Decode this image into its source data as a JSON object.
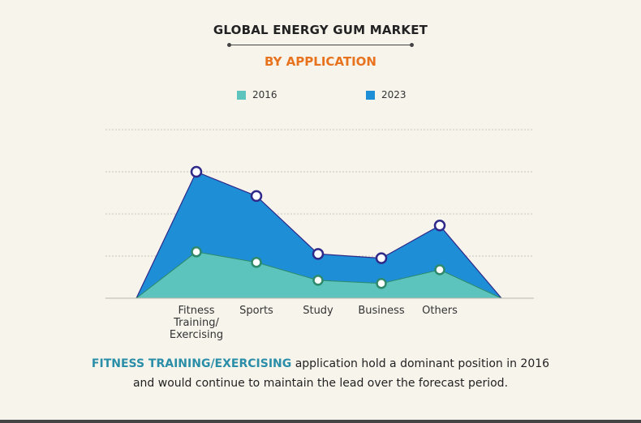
{
  "header": {
    "title": "GLOBAL ENERGY GUM MARKET",
    "subtitle": "BY APPLICATION"
  },
  "footer": {
    "highlight": "FITNESS TRAINING/EXERCISING",
    "line1_rest": " application hold a dominant position in 2016",
    "line2": "and would continue to maintain the lead over the forecast period."
  },
  "colors": {
    "series_2016": "#5cc3bd",
    "series_2023": "#1e8fd6",
    "marker_2016": "#2e8a6a",
    "marker_2023": "#2f2a8a",
    "grid": "#c9c6bd",
    "accent": "#e8731e"
  },
  "chart_data": {
    "type": "area",
    "categories": [
      "Fitness\nTraining/\nExercising",
      "Sports",
      "Study",
      "Business",
      "Others"
    ],
    "series": [
      {
        "name": "2016",
        "values": [
          2.2,
          1.7,
          0.85,
          0.7,
          1.35
        ]
      },
      {
        "name": "2023",
        "values": [
          6.0,
          4.85,
          2.1,
          1.9,
          3.45
        ]
      }
    ],
    "ylim": [
      0,
      8
    ],
    "grid": true,
    "legend_position": "top",
    "xlabel": "",
    "ylabel": ""
  }
}
